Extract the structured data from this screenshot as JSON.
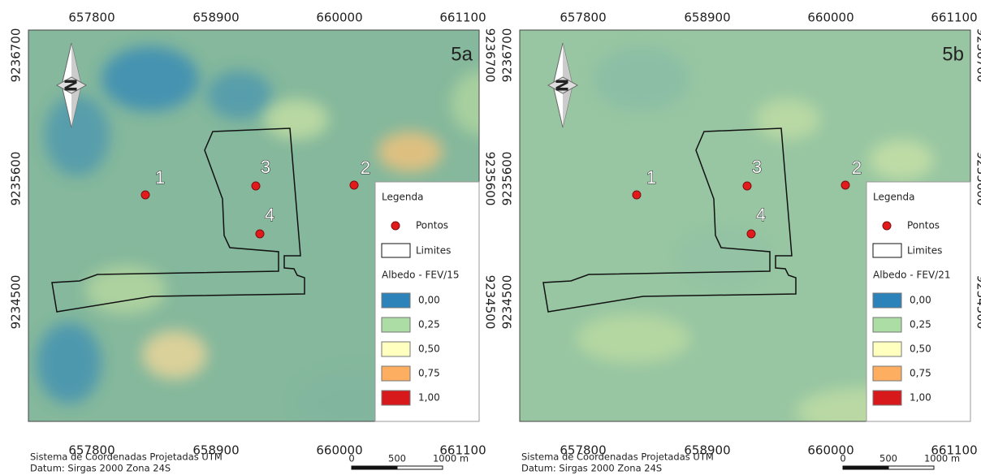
{
  "panels": [
    {
      "tag": "5a",
      "x_ticks": [
        "657800",
        "658900",
        "660000",
        "661100"
      ],
      "y_ticks": [
        "9236700",
        "9235600",
        "9234500"
      ],
      "points": [
        "1",
        "2",
        "3",
        "4"
      ],
      "legend": {
        "title": "Legenda",
        "points_label": "Pontos",
        "limits_label": "Limites",
        "ramp_title": "Albedo - FEV/15",
        "classes": [
          {
            "label": "0,00",
            "color": "#2b83ba"
          },
          {
            "label": "0,25",
            "color": "#abdda4"
          },
          {
            "label": "0,50",
            "color": "#ffffbf"
          },
          {
            "label": "0,75",
            "color": "#fdae61"
          },
          {
            "label": "1,00",
            "color": "#d7191c"
          }
        ]
      },
      "footer": [
        "Sistema de Coordenadas Projetadas UTM",
        "Datum: Sirgas 2000 Zona 24S"
      ],
      "scale": [
        "0",
        "500",
        "1000 m"
      ]
    },
    {
      "tag": "5b",
      "x_ticks": [
        "657800",
        "658900",
        "660000",
        "661100"
      ],
      "y_ticks": [
        "9236700",
        "9235600",
        "9234500"
      ],
      "points": [
        "1",
        "2",
        "3",
        "4"
      ],
      "legend": {
        "title": "Legenda",
        "points_label": "Pontos",
        "limits_label": "Limites",
        "ramp_title": "Albedo - FEV/21",
        "classes": [
          {
            "label": "0,00",
            "color": "#2b83ba"
          },
          {
            "label": "0,25",
            "color": "#abdda4"
          },
          {
            "label": "0,50",
            "color": "#ffffbf"
          },
          {
            "label": "0,75",
            "color": "#fdae61"
          },
          {
            "label": "1,00",
            "color": "#d7191c"
          }
        ]
      },
      "footer": [
        "Sistema de Coordenadas Projetadas UTM",
        "Datum: Sirgas 2000 Zona 24S"
      ],
      "scale": [
        "0",
        "500",
        "1000 m"
      ]
    }
  ]
}
